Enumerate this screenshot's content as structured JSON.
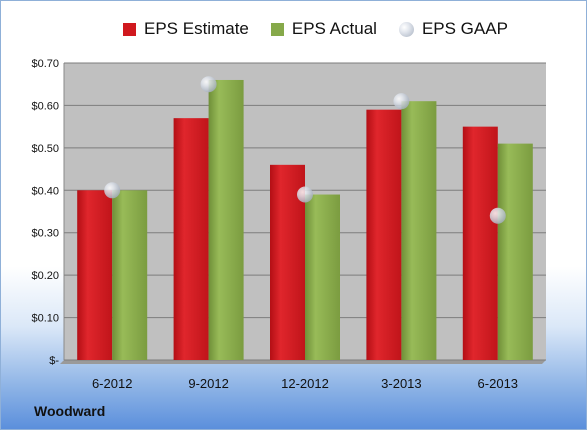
{
  "company": "Woodward",
  "chart_data": {
    "type": "bar",
    "categories": [
      "6-2012",
      "9-2012",
      "12-2012",
      "3-2013",
      "6-2013"
    ],
    "series": [
      {
        "name": "EPS Estimate",
        "values": [
          0.4,
          0.57,
          0.46,
          0.59,
          0.55
        ],
        "color": "#d0181e"
      },
      {
        "name": "EPS Actual",
        "values": [
          0.4,
          0.66,
          0.39,
          0.61,
          0.51
        ],
        "color": "#86a94a"
      }
    ],
    "markers": {
      "name": "EPS GAAP",
      "values": [
        0.4,
        0.65,
        0.39,
        0.61,
        0.34
      ],
      "color": "#c6cbd3"
    },
    "y_ticks": [
      {
        "value": 0.0,
        "label": "$-"
      },
      {
        "value": 0.1,
        "label": "$0.10"
      },
      {
        "value": 0.2,
        "label": "$0.20"
      },
      {
        "value": 0.3,
        "label": "$0.30"
      },
      {
        "value": 0.4,
        "label": "$0.40"
      },
      {
        "value": 0.5,
        "label": "$0.50"
      },
      {
        "value": 0.6,
        "label": "$0.60"
      },
      {
        "value": 0.7,
        "label": "$0.70"
      }
    ],
    "ylim": [
      0,
      0.7
    ],
    "grid": true,
    "legend_position": "top",
    "plot_background": "#c0c0c0"
  }
}
